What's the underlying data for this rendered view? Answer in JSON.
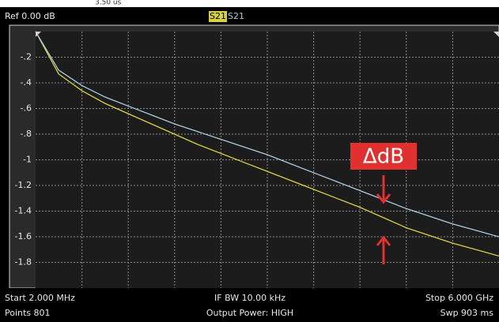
{
  "chart_data": {
    "type": "line",
    "top_clipped_text": "3.50 us",
    "ref_label": "Ref 0.00 dB",
    "footer": [
      "Start 2.000 MHz",
      "IF BW 10.00 kHz",
      "Stop 6.000 GHz",
      "Points 801",
      "Output Power: HIGH",
      "Swp 903 ms"
    ],
    "annotation": "ΔdB",
    "x": [
      0.002,
      0.3,
      0.6,
      0.9,
      1.2,
      1.5,
      1.8,
      2.1,
      2.4,
      2.7,
      3.0,
      3.3,
      3.6,
      3.9,
      4.2,
      4.5,
      4.8,
      5.1,
      5.4,
      5.7,
      6.0
    ],
    "xlim": [
      0.002,
      6.0
    ],
    "ylim": [
      -2,
      0
    ],
    "yticks": [
      {
        "value": -0.2,
        "label": "-.2"
      },
      {
        "value": -0.4,
        "label": "-.4"
      },
      {
        "value": -0.6,
        "label": "-.6"
      },
      {
        "value": -0.8,
        "label": "-.8"
      },
      -1,
      {
        "value": -1.2,
        "label": "-1.2"
      },
      {
        "value": -1.4,
        "label": "-1.4"
      },
      {
        "value": -1.6,
        "label": "-1.6"
      },
      {
        "value": -1.8,
        "label": "-1.8"
      }
    ],
    "grid": true,
    "series": [
      {
        "name": "S21",
        "color": "#d8d040",
        "values": [
          0,
          -0.33,
          -0.46,
          -0.56,
          -0.64,
          -0.72,
          -0.8,
          -0.88,
          -0.95,
          -1.02,
          -1.09,
          -1.16,
          -1.23,
          -1.3,
          -1.37,
          -1.45,
          -1.53,
          -1.59,
          -1.65,
          -1.7,
          -1.75
        ]
      },
      {
        "name": "S21",
        "color": "#a8cce0",
        "values": [
          0,
          -0.3,
          -0.42,
          -0.51,
          -0.58,
          -0.65,
          -0.72,
          -0.78,
          -0.84,
          -0.9,
          -0.96,
          -1.03,
          -1.1,
          -1.17,
          -1.24,
          -1.31,
          -1.38,
          -1.44,
          -1.5,
          -1.55,
          -1.6
        ]
      }
    ]
  }
}
